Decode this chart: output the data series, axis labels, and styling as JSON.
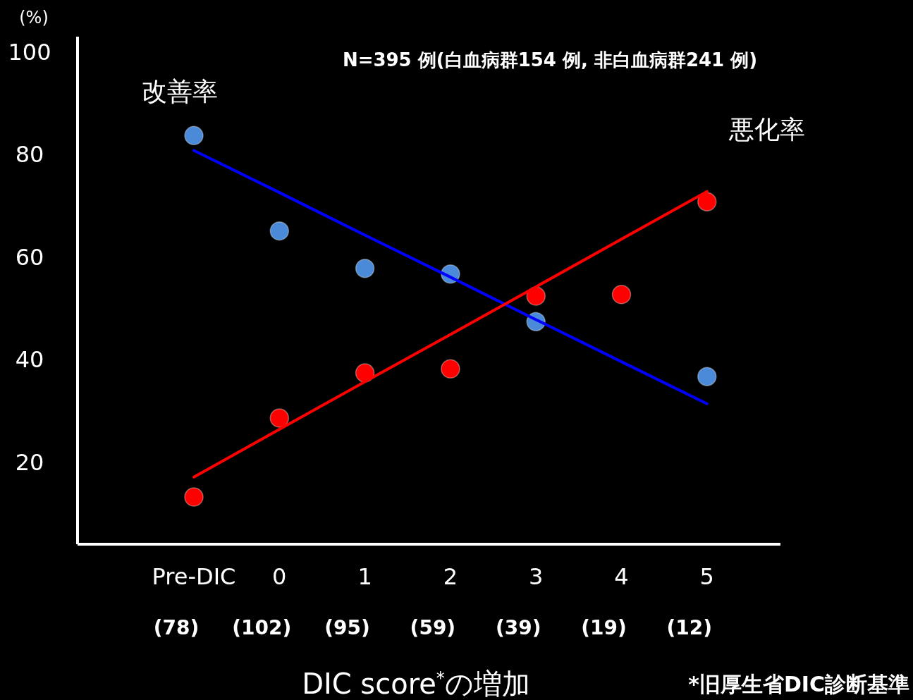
{
  "chart_data": {
    "type": "scatter",
    "title": "N=395 例(白血病群154 例, 非白血病群241 例)",
    "ylabel": "(%)",
    "xlabel": "DIC score$^{*}$の増加",
    "annotations": [
      "(78)",
      "(102)",
      "(95)",
      "(59)",
      "(39)",
      "(19)",
      "(12)",
      "*旧厚生省DIC診断基準"
    ],
    "categories": [
      "Pre-DIC",
      "0",
      "1",
      "2",
      "3",
      "4",
      "5"
    ],
    "ylim": [
      4,
      103
    ],
    "yticks": [
      20,
      40,
      60,
      80,
      100
    ],
    "grid": false,
    "series": [
      {
        "name": "改善率",
        "color": "#4a8ad8",
        "marker": "circle",
        "values": [
          83.7,
          65.1,
          57.8,
          56.7,
          47.4,
          null,
          36.7
        ]
      },
      {
        "name": "悪化率",
        "color": "#ff0000",
        "marker": "circle",
        "values": [
          13.2,
          28.6,
          37.4,
          38.2,
          52.4,
          52.7,
          70.8
        ]
      },
      {
        "type": "line",
        "color": "#0000ff",
        "line_style": "solid",
        "values": [
          80.8,
          72.6,
          64.3,
          56.1,
          47.8,
          39.6,
          31.4
        ]
      },
      {
        "type": "line",
        "color": "#ff0000",
        "line_style": "solid",
        "values": [
          17.1,
          26.4,
          35.7,
          44.9,
          54.2,
          63.5,
          72.8
        ]
      }
    ]
  }
}
